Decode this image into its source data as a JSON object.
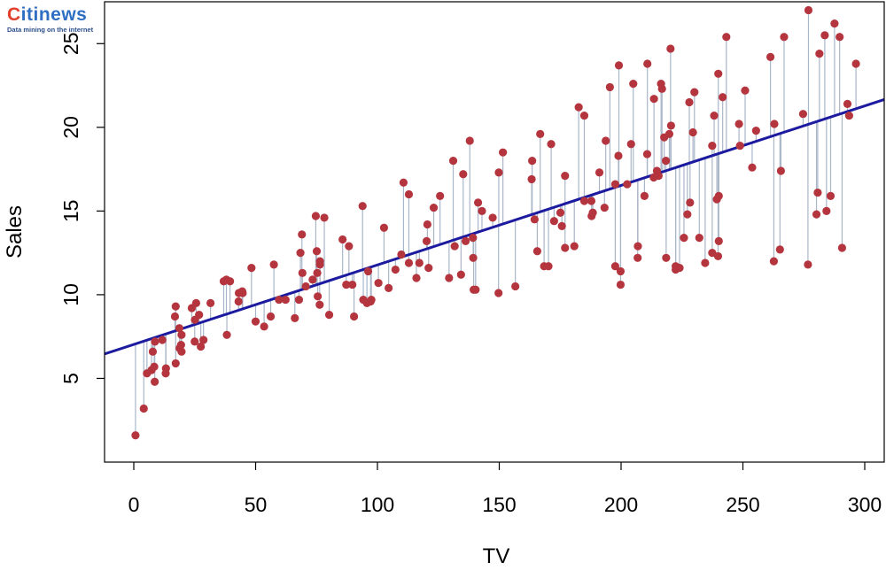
{
  "logo": {
    "c": "C",
    "rest": "itinews",
    "tagline": "Data mining on the internet"
  },
  "colors": {
    "point": "#b5353f",
    "residual": "#a9b6c9",
    "fit_line": "#1c1a9e"
  },
  "chart_data": {
    "type": "scatter",
    "xlabel": "TV",
    "ylabel": "Sales",
    "xlim": [
      -12,
      308
    ],
    "ylim": [
      0,
      27.5
    ],
    "xticks": [
      0,
      50,
      100,
      150,
      200,
      250,
      300
    ],
    "yticks": [
      5,
      10,
      15,
      20,
      25
    ],
    "regression": {
      "intercept": 7.03,
      "slope": 0.0475
    },
    "points": [
      [
        0.7,
        1.6
      ],
      [
        4.1,
        3.2
      ],
      [
        5.4,
        5.3
      ],
      [
        7.3,
        5.5
      ],
      [
        7.8,
        6.6
      ],
      [
        8.4,
        5.7
      ],
      [
        8.6,
        4.8
      ],
      [
        8.7,
        7.2
      ],
      [
        11.7,
        7.3
      ],
      [
        13.1,
        5.3
      ],
      [
        13.2,
        5.6
      ],
      [
        16.9,
        8.7
      ],
      [
        17.2,
        5.9
      ],
      [
        17.2,
        9.3
      ],
      [
        18.7,
        8.0
      ],
      [
        18.8,
        6.8
      ],
      [
        19.4,
        7.0
      ],
      [
        19.6,
        7.6
      ],
      [
        19.6,
        6.6
      ],
      [
        23.8,
        9.2
      ],
      [
        25.0,
        7.2
      ],
      [
        25.1,
        8.5
      ],
      [
        25.6,
        9.5
      ],
      [
        26.8,
        8.8
      ],
      [
        27.5,
        6.9
      ],
      [
        28.6,
        7.3
      ],
      [
        31.5,
        9.5
      ],
      [
        36.9,
        10.8
      ],
      [
        38.0,
        10.9
      ],
      [
        38.2,
        7.6
      ],
      [
        39.5,
        10.8
      ],
      [
        43.0,
        9.6
      ],
      [
        43.1,
        10.1
      ],
      [
        44.5,
        10.2
      ],
      [
        44.7,
        10.1
      ],
      [
        48.3,
        11.6
      ],
      [
        50.0,
        8.4
      ],
      [
        53.5,
        8.1
      ],
      [
        56.2,
        8.7
      ],
      [
        57.5,
        11.8
      ],
      [
        59.6,
        9.7
      ],
      [
        62.3,
        9.7
      ],
      [
        66.1,
        8.6
      ],
      [
        67.8,
        9.7
      ],
      [
        68.4,
        12.5
      ],
      [
        69.0,
        13.6
      ],
      [
        69.2,
        11.3
      ],
      [
        70.6,
        10.5
      ],
      [
        73.4,
        10.9
      ],
      [
        74.7,
        14.7
      ],
      [
        75.1,
        12.6
      ],
      [
        75.3,
        11.3
      ],
      [
        75.5,
        9.9
      ],
      [
        76.3,
        9.4
      ],
      [
        76.4,
        12.0
      ],
      [
        76.4,
        11.8
      ],
      [
        78.2,
        14.6
      ],
      [
        80.2,
        8.8
      ],
      [
        85.7,
        13.3
      ],
      [
        87.2,
        10.6
      ],
      [
        88.3,
        12.9
      ],
      [
        89.7,
        10.6
      ],
      [
        90.4,
        8.7
      ],
      [
        93.9,
        15.3
      ],
      [
        94.2,
        9.7
      ],
      [
        95.7,
        9.5
      ],
      [
        96.2,
        11.4
      ],
      [
        97.2,
        9.6
      ],
      [
        97.5,
        9.7
      ],
      [
        100.4,
        10.7
      ],
      [
        102.7,
        14.0
      ],
      [
        104.6,
        10.4
      ],
      [
        107.4,
        11.5
      ],
      [
        109.8,
        12.4
      ],
      [
        110.7,
        16.7
      ],
      [
        112.9,
        16.0
      ],
      [
        112.9,
        11.9
      ],
      [
        116.0,
        11.0
      ],
      [
        117.2,
        11.9
      ],
      [
        120.2,
        13.2
      ],
      [
        120.5,
        14.2
      ],
      [
        121.0,
        11.6
      ],
      [
        123.1,
        15.2
      ],
      [
        125.7,
        15.9
      ],
      [
        129.4,
        11.0
      ],
      [
        131.1,
        18.0
      ],
      [
        131.7,
        12.9
      ],
      [
        134.3,
        11.2
      ],
      [
        135.2,
        17.2
      ],
      [
        136.2,
        13.2
      ],
      [
        137.9,
        19.2
      ],
      [
        139.2,
        13.4
      ],
      [
        139.3,
        12.2
      ],
      [
        139.5,
        10.3
      ],
      [
        140.3,
        10.3
      ],
      [
        141.3,
        15.5
      ],
      [
        142.9,
        15.0
      ],
      [
        147.3,
        14.6
      ],
      [
        149.7,
        10.1
      ],
      [
        149.8,
        17.3
      ],
      [
        151.5,
        18.5
      ],
      [
        156.6,
        10.5
      ],
      [
        163.3,
        16.9
      ],
      [
        163.5,
        18.0
      ],
      [
        164.5,
        14.5
      ],
      [
        165.6,
        12.6
      ],
      [
        166.8,
        19.6
      ],
      [
        168.4,
        11.7
      ],
      [
        170.2,
        11.7
      ],
      [
        171.3,
        19.0
      ],
      [
        172.5,
        14.4
      ],
      [
        175.1,
        14.9
      ],
      [
        175.7,
        14.1
      ],
      [
        177.0,
        12.8
      ],
      [
        177.0,
        17.1
      ],
      [
        180.8,
        12.9
      ],
      [
        182.6,
        21.2
      ],
      [
        184.9,
        15.6
      ],
      [
        184.9,
        20.7
      ],
      [
        187.8,
        15.6
      ],
      [
        187.9,
        14.7
      ],
      [
        188.4,
        14.9
      ],
      [
        191.1,
        17.3
      ],
      [
        193.2,
        15.2
      ],
      [
        193.7,
        19.2
      ],
      [
        195.4,
        22.4
      ],
      [
        197.6,
        11.7
      ],
      [
        197.6,
        16.6
      ],
      [
        198.9,
        18.3
      ],
      [
        199.1,
        23.7
      ],
      [
        199.8,
        10.6
      ],
      [
        199.8,
        11.4
      ],
      [
        202.5,
        16.6
      ],
      [
        204.1,
        19.0
      ],
      [
        205.0,
        22.6
      ],
      [
        206.8,
        12.2
      ],
      [
        206.9,
        12.9
      ],
      [
        209.6,
        15.9
      ],
      [
        210.7,
        18.4
      ],
      [
        210.8,
        23.8
      ],
      [
        213.4,
        17.0
      ],
      [
        213.5,
        21.7
      ],
      [
        214.7,
        17.4
      ],
      [
        215.4,
        17.1
      ],
      [
        216.4,
        22.6
      ],
      [
        216.8,
        22.3
      ],
      [
        217.7,
        19.4
      ],
      [
        218.4,
        18.0
      ],
      [
        218.5,
        12.2
      ],
      [
        219.8,
        19.6
      ],
      [
        220.3,
        24.7
      ],
      [
        220.5,
        20.1
      ],
      [
        222.4,
        11.5
      ],
      [
        222.4,
        11.7
      ],
      [
        224.0,
        11.6
      ],
      [
        225.8,
        13.4
      ],
      [
        227.2,
        14.8
      ],
      [
        228.0,
        21.5
      ],
      [
        228.3,
        15.5
      ],
      [
        229.5,
        19.7
      ],
      [
        230.1,
        22.1
      ],
      [
        232.1,
        13.4
      ],
      [
        234.5,
        11.9
      ],
      [
        237.4,
        12.5
      ],
      [
        237.4,
        18.9
      ],
      [
        238.2,
        20.7
      ],
      [
        239.3,
        15.7
      ],
      [
        239.8,
        12.3
      ],
      [
        239.9,
        23.2
      ],
      [
        240.1,
        13.2
      ],
      [
        240.1,
        15.9
      ],
      [
        241.7,
        21.8
      ],
      [
        243.2,
        25.4
      ],
      [
        248.4,
        20.2
      ],
      [
        248.8,
        18.9
      ],
      [
        250.9,
        22.2
      ],
      [
        253.8,
        17.6
      ],
      [
        255.4,
        19.8
      ],
      [
        261.3,
        24.2
      ],
      [
        262.7,
        12.0
      ],
      [
        262.9,
        20.2
      ],
      [
        265.2,
        12.7
      ],
      [
        265.6,
        17.4
      ],
      [
        266.9,
        25.4
      ],
      [
        274.7,
        20.8
      ],
      [
        276.7,
        11.8
      ],
      [
        276.9,
        27.0
      ],
      [
        280.2,
        14.8
      ],
      [
        280.7,
        16.1
      ],
      [
        281.4,
        24.4
      ],
      [
        283.6,
        25.5
      ],
      [
        284.3,
        15.0
      ],
      [
        286.0,
        15.9
      ],
      [
        287.6,
        26.2
      ],
      [
        289.7,
        25.4
      ],
      [
        290.7,
        12.8
      ],
      [
        292.9,
        21.4
      ],
      [
        293.6,
        20.7
      ],
      [
        296.4,
        23.8
      ]
    ]
  }
}
